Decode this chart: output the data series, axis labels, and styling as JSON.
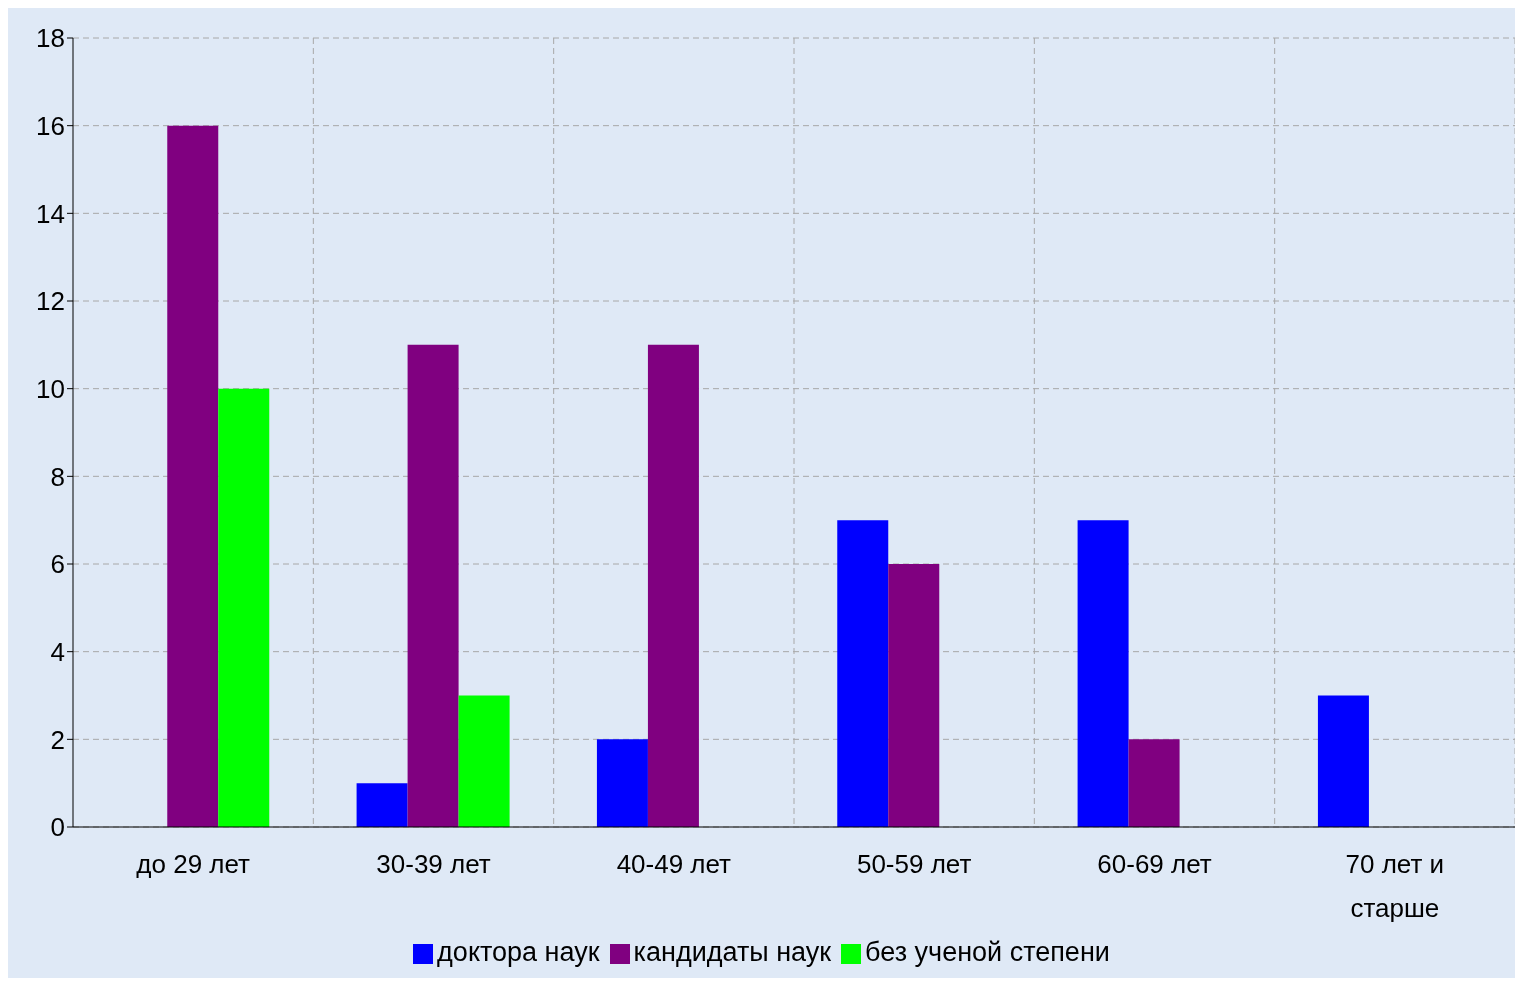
{
  "chart_data": {
    "type": "bar",
    "categories": [
      "до 29 лет",
      "30-39 лет",
      "40-49 лет",
      "50-59 лет",
      "60-69 лет",
      "70 лет и старше"
    ],
    "series": [
      {
        "name": "доктора наук",
        "color": "#0000ff",
        "values": [
          null,
          1,
          2,
          7,
          7,
          3
        ]
      },
      {
        "name": "кандидаты наук",
        "color": "#800080",
        "values": [
          16,
          11,
          11,
          6,
          2,
          null
        ]
      },
      {
        "name": "без ученой степени",
        "color": "#00ff00",
        "values": [
          10,
          3,
          null,
          null,
          null,
          null
        ]
      }
    ],
    "ylim": [
      0,
      18
    ],
    "yticks": [
      0,
      2,
      4,
      6,
      8,
      10,
      12,
      14,
      16,
      18
    ],
    "grid": true,
    "legend": "bottom"
  }
}
